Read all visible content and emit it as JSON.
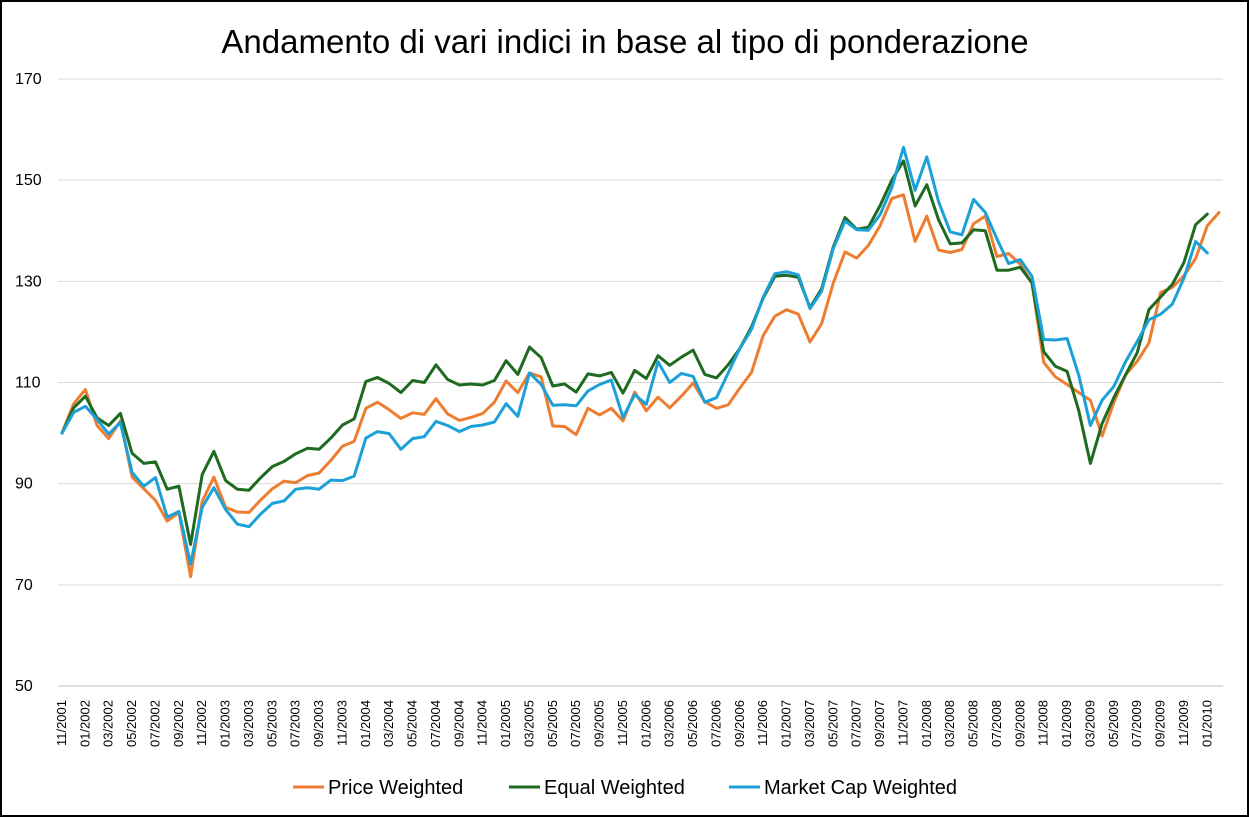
{
  "chart_data": {
    "type": "line",
    "title": "Andamento di vari indici in base al tipo di ponderazione",
    "xlabel": "",
    "ylabel": "",
    "ylim": [
      50,
      170
    ],
    "y_ticks": [
      "170",
      "150",
      "130",
      "110",
      "90",
      "70",
      "50"
    ],
    "grid": true,
    "legend_position": "bottom",
    "x_tick_labels": [
      "11/2001",
      "01/2002",
      "03/2002",
      "05/2002",
      "07/2002",
      "09/2002",
      "11/2002",
      "01/2003",
      "03/2003",
      "05/2003",
      "07/2003",
      "09/2003",
      "11/2003",
      "01/2004",
      "03/2004",
      "05/2004",
      "07/2004",
      "09/2004",
      "11/2004",
      "01/2005",
      "03/2005",
      "05/2005",
      "07/2005",
      "09/2005",
      "11/2005",
      "01/2006",
      "03/2006",
      "05/2006",
      "07/2006",
      "09/2006",
      "11/2006",
      "01/2007",
      "03/2007",
      "05/2007",
      "07/2007",
      "09/2007",
      "11/2007",
      "01/2008",
      "03/2008",
      "05/2008",
      "07/2008",
      "09/2008",
      "11/2008",
      "01/2009",
      "03/2009",
      "05/2009",
      "07/2009",
      "09/2009",
      "11/2009",
      "01/2010"
    ],
    "series": [
      {
        "name": "Price Weighted",
        "color": "#ed7d31",
        "values": [
          100,
          105.8,
          108.6,
          101.5,
          98.9,
          102.4,
          91.3,
          89,
          86.7,
          82.6,
          84.3,
          71.6,
          86.5,
          91.3,
          85.3,
          84.4,
          84.3,
          86.8,
          89,
          90.5,
          90.2,
          91.6,
          92.1,
          94.6,
          97.4,
          98.4,
          104.9,
          106.1,
          104.6,
          102.9,
          104,
          103.7,
          106.8,
          103.8,
          102.5,
          103.1,
          103.9,
          106.1,
          110.3,
          108,
          111.9,
          111.1,
          101.4,
          101.3,
          99.7,
          104.9,
          103.6,
          104.9,
          102.4,
          108.1,
          104.4,
          107.1,
          105,
          107.3,
          109.9,
          106.2,
          104.9,
          105.6,
          108.9,
          112,
          119.3,
          123.1,
          124.4,
          123.5,
          118,
          121.6,
          129.7,
          135.8,
          134.6,
          137.1,
          141,
          146.4,
          147.1,
          137.9,
          142.9,
          136.2,
          135.7,
          136.3,
          141.4,
          142.9,
          134.9,
          135.5,
          133.4,
          129.6,
          114,
          111.1,
          109.6,
          108,
          106.5,
          99.4,
          106,
          111.5,
          114.2,
          117.8,
          127.8,
          128.8,
          131.1,
          134.5,
          141,
          143.6
        ]
      },
      {
        "name": "Equal Weighted",
        "color": "#1e6a20",
        "values": [
          100,
          105,
          107.3,
          103,
          101.5,
          103.9,
          96,
          94,
          94.3,
          88.9,
          89.5,
          78,
          91.8,
          96.4,
          90.6,
          88.9,
          88.7,
          91.2,
          93.4,
          94.4,
          95.9,
          97,
          96.8,
          99,
          101.6,
          102.8,
          110.2,
          111,
          109.8,
          108,
          110.4,
          110,
          113.5,
          110.6,
          109.5,
          109.7,
          109.5,
          110.4,
          114.3,
          111.6,
          117,
          114.9,
          109.3,
          109.7,
          108.1,
          111.7,
          111.3,
          112,
          107.9,
          112.4,
          110.8,
          115.3,
          113.4,
          115,
          116.4,
          111.6,
          110.9,
          113.5,
          116.7,
          121,
          126.7,
          131,
          131.2,
          130.8,
          124.8,
          128.5,
          136.8,
          142.6,
          140.3,
          140.7,
          145,
          150,
          153.8,
          144.9,
          149.1,
          142.2,
          137.4,
          137.6,
          140.2,
          140,
          132.2,
          132.2,
          132.8,
          129.7,
          116.1,
          113.2,
          112.2,
          104.4,
          94,
          101.9,
          107,
          111.5,
          115.9,
          124.4,
          126.9,
          129.4,
          133.7,
          141.2,
          143.3
        ]
      },
      {
        "name": "Market Cap Weighted",
        "color": "#1ba1d8",
        "values": [
          100,
          104.1,
          105.3,
          102.7,
          99.8,
          102.1,
          92.2,
          89.5,
          91.2,
          83.4,
          84.5,
          74.1,
          85.3,
          89.2,
          84.9,
          82,
          81.5,
          84,
          86.1,
          86.6,
          88.9,
          89.2,
          88.9,
          90.7,
          90.6,
          91.5,
          99,
          100.3,
          99.9,
          96.8,
          98.9,
          99.3,
          102.3,
          101.5,
          100.3,
          101.3,
          101.6,
          102.2,
          105.8,
          103.3,
          111.9,
          109.6,
          105.5,
          105.6,
          105.4,
          108.3,
          109.6,
          110.5,
          103.1,
          107.6,
          105.7,
          114.1,
          110,
          111.8,
          111.2,
          106.1,
          107,
          111.9,
          116.7,
          120.5,
          126.9,
          131.5,
          131.9,
          131.3,
          124.6,
          128,
          136.5,
          141.9,
          140.2,
          140.1,
          143.2,
          148.5,
          156.5,
          148,
          154.6,
          145.8,
          139.8,
          139.2,
          146.2,
          143.6,
          138.4,
          133.5,
          134.3,
          131,
          118.5,
          118.4,
          118.7,
          111.4,
          101.5,
          106.5,
          109.2,
          114.1,
          118.1,
          122.4,
          123.5,
          125.5,
          130.6,
          137.9,
          135.6
        ]
      }
    ]
  }
}
